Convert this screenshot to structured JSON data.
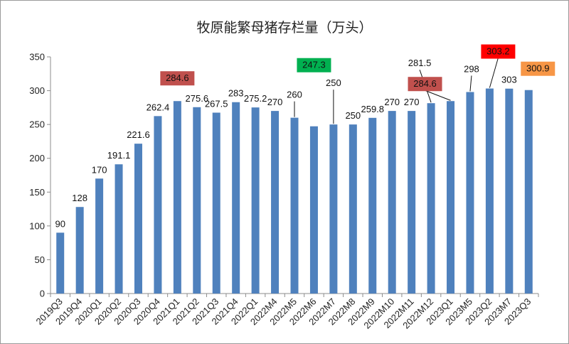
{
  "chart_data": {
    "type": "bar",
    "title": "牧原能繁母猪存栏量（万头）",
    "xlabel": "",
    "ylabel": "",
    "ylim": [
      0,
      350
    ],
    "yticks": [
      0,
      50,
      100,
      150,
      200,
      250,
      300,
      350
    ],
    "grid": false,
    "legend": "none",
    "bar_color": "#4f81bd",
    "categories": [
      "2019Q3",
      "2019Q4",
      "2020Q1",
      "2020Q2",
      "2020Q3",
      "2020Q4",
      "2021Q1",
      "2021Q2",
      "2021Q3",
      "2021Q4",
      "2022Q1",
      "2022M4",
      "2022M5",
      "2022M6",
      "2022M7",
      "2022M8",
      "2022M9",
      "2022M10",
      "2022M11",
      "2022M12",
      "2023Q1",
      "2023M5",
      "2023Q2",
      "2023M7",
      "2023Q3"
    ],
    "values": [
      90,
      128,
      170,
      191.1,
      221.6,
      262.4,
      284.6,
      275.6,
      267.5,
      283,
      275.2,
      270,
      260,
      247.3,
      250,
      250,
      259.8,
      270,
      270,
      281.5,
      284.6,
      298,
      303.2,
      303,
      300.9
    ],
    "labels": [
      "90",
      "128",
      "170",
      "191.1",
      "221.6",
      "262.4",
      "284.6",
      "275.6",
      "267.5",
      "283",
      "275.2",
      "270",
      "260",
      "247.3",
      "250",
      "250",
      "259.8",
      "270",
      "270",
      "281.5",
      "284.6",
      "298",
      "303.2",
      "303",
      "300.9"
    ],
    "highlights": [
      {
        "index": 6,
        "color": "#c0504d"
      },
      {
        "index": 13,
        "color": "#00b050"
      },
      {
        "index": 20,
        "color": "#c0504d"
      },
      {
        "index": 22,
        "color": "#ff0000"
      },
      {
        "index": 24,
        "color": "#f79646"
      }
    ]
  }
}
